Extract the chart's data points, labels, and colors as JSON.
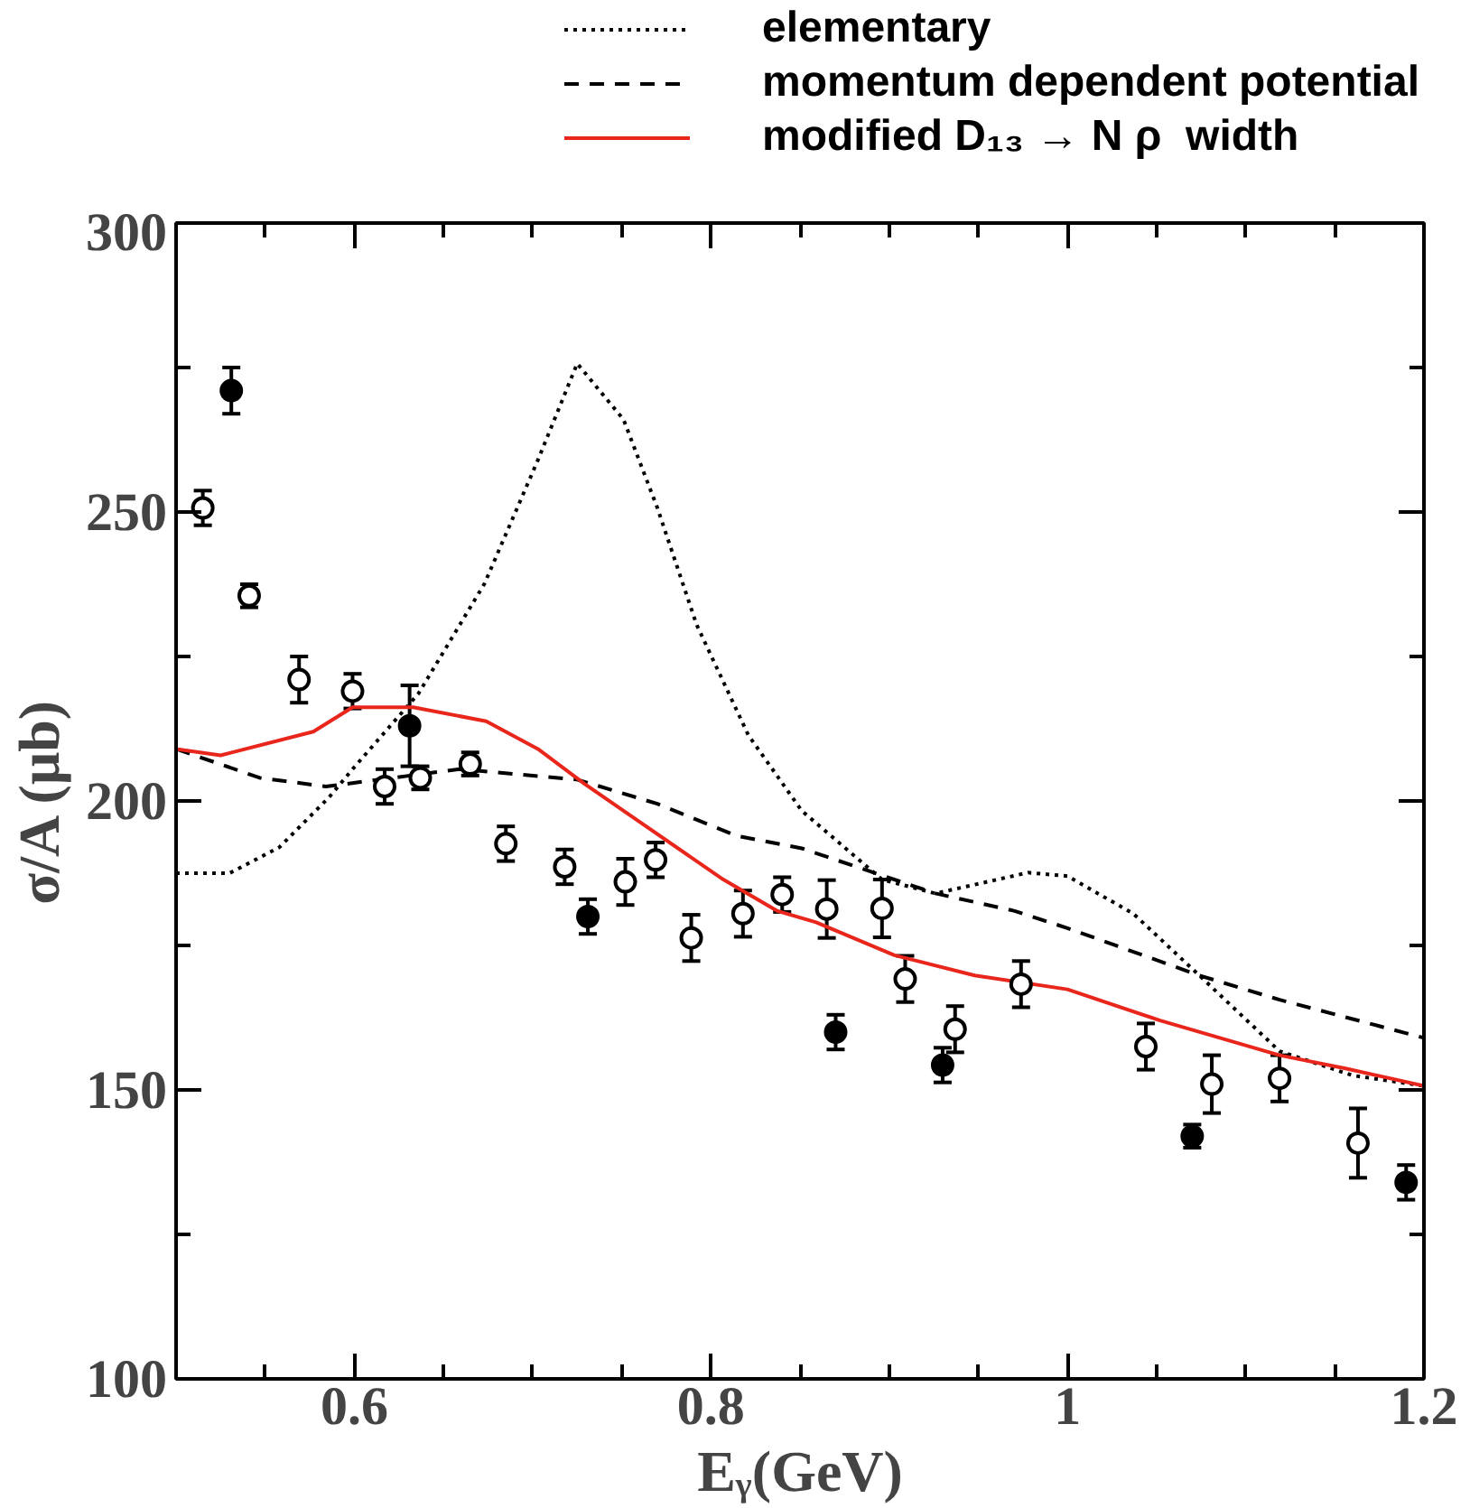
{
  "chart_data": {
    "type": "line",
    "xlabel": "Eᵧ(GeV)",
    "ylabel": "σ/A (μb)",
    "xlim": [
      0.5,
      1.2
    ],
    "ylim": [
      100,
      300
    ],
    "xticks": [
      {
        "value": 0.55,
        "label": null
      },
      0.6,
      {
        "value": 0.65,
        "label": null
      },
      {
        "value": 0.7,
        "label": null
      },
      {
        "value": 0.75,
        "label": null
      },
      0.8,
      {
        "value": 0.85,
        "label": null
      },
      {
        "value": 0.9,
        "label": null
      },
      {
        "value": 0.95,
        "label": null
      },
      1,
      {
        "value": 1.05,
        "label": null
      },
      {
        "value": 1.1,
        "label": null
      },
      {
        "value": 1.15,
        "label": null
      },
      1.2
    ],
    "yticks": [
      100,
      {
        "value": 125,
        "label": null
      },
      150,
      {
        "value": 175,
        "label": null
      },
      200,
      {
        "value": 225,
        "label": null
      },
      250,
      {
        "value": 275,
        "label": null
      },
      300
    ],
    "grid": false,
    "legend": "top",
    "series": [
      {
        "name": "elementary",
        "color": "#000000",
        "line_style": "dotted",
        "x": [
          0.5,
          0.53,
          0.558,
          0.586,
          0.599,
          0.636,
          0.673,
          0.703,
          0.725,
          0.751,
          0.77,
          0.792,
          0.821,
          0.851,
          0.896,
          0.926,
          0.978,
          1.0,
          1.037,
          1.074,
          1.119,
          1.16,
          1.2
        ],
        "values": [
          187.5,
          187.5,
          192,
          200.7,
          205.5,
          218.6,
          237.6,
          259,
          275.7,
          266,
          250.7,
          230.5,
          211.4,
          198.3,
          186.4,
          184,
          187.6,
          187,
          180.5,
          169.8,
          156.7,
          152.5,
          150.7
        ]
      },
      {
        "name": "momentum dependent potential",
        "color": "#000000",
        "line_style": "dashed",
        "x": [
          0.5,
          0.547,
          0.584,
          0.659,
          0.725,
          0.77,
          0.814,
          0.851,
          0.926,
          0.97,
          1.0,
          1.074,
          1.119,
          1.2
        ],
        "values": [
          209,
          204,
          202.5,
          205.5,
          203.7,
          199.5,
          194,
          191.8,
          184,
          181,
          178,
          169.8,
          165.6,
          159
        ]
      },
      {
        "name": "modified D₁₃ → N ρ  width",
        "color": "#e8261c",
        "line_style": "solid",
        "x": [
          0.5,
          0.525,
          0.577,
          0.599,
          0.633,
          0.674,
          0.703,
          0.729,
          0.751,
          0.807,
          0.837,
          0.859,
          0.903,
          0.948,
          1.0,
          1.052,
          1.119,
          1.156,
          1.2
        ],
        "values": [
          209,
          207.9,
          212,
          216.2,
          216.2,
          213.8,
          209,
          203,
          198.3,
          186.4,
          181,
          179,
          173.3,
          169.8,
          167.4,
          162,
          156,
          153.7,
          150.7
        ]
      },
      {
        "type": "scatter",
        "color": "#000000",
        "marker": "circle",
        "x": [
          0.531,
          0.631,
          0.731,
          0.87,
          0.93,
          1.07,
          1.19
        ],
        "values": [
          271,
          213,
          180,
          160,
          154.3,
          142,
          134
        ],
        "errors": [
          4,
          7,
          3,
          3,
          3,
          2,
          3
        ]
      },
      {
        "type": "scatter",
        "color": "#000000",
        "marker": "circle_open",
        "x": [
          0.515,
          0.541,
          0.569,
          0.599,
          0.617,
          0.637,
          0.665,
          0.685,
          0.718,
          0.752,
          0.769,
          0.789,
          0.818,
          0.84,
          0.865,
          0.896,
          0.909,
          0.937,
          0.974,
          1.044,
          1.081,
          1.119,
          1.163
        ],
        "values": [
          250.7,
          235.5,
          221,
          219,
          202.5,
          204,
          206.4,
          192.6,
          188.6,
          186,
          189.8,
          176.3,
          180.5,
          183.8,
          181.3,
          181.4,
          169.2,
          160.5,
          168.3,
          157.5,
          151,
          152,
          140.8
        ],
        "errors": [
          3,
          2,
          4,
          3,
          3,
          2,
          2,
          3,
          3,
          4,
          3,
          4,
          4,
          3,
          5,
          5,
          4,
          4,
          4,
          4,
          5,
          4,
          6
        ]
      }
    ]
  }
}
